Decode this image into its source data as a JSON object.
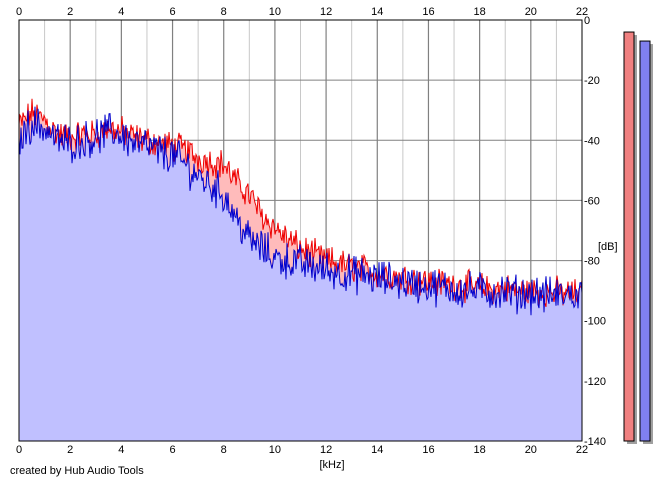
{
  "chart_data": {
    "type": "area",
    "xlabel": "[kHz]",
    "ylabel": "[dB]",
    "xlim": [
      0,
      22
    ],
    "ylim": [
      -140,
      0
    ],
    "x_ticks": [
      "0",
      "2",
      "4",
      "6",
      "8",
      "10",
      "12",
      "14",
      "16",
      "18",
      "20",
      "22"
    ],
    "y_ticks": [
      "0",
      "-20",
      "-40",
      "-60",
      "-80",
      "-100",
      "-120",
      "-140"
    ],
    "grid": true,
    "x_tick_positions": "top-and-bottom",
    "y_tick_positions": "right",
    "credit": "created by Hub Audio Tools",
    "colors": {
      "channel_1_line": "#ee0000",
      "channel_1_fill": "#ffbbbb",
      "channel_2_line": "#0000cc",
      "channel_2_fill": "#c0c0ff",
      "grid_major": "#808080",
      "grid_minor": "#c8c8c8",
      "meter_1": "#f08080",
      "meter_2": "#8080f0"
    },
    "series": [
      {
        "x": [
          0,
          0.5,
          1,
          1.5,
          2,
          2.5,
          3,
          3.5,
          4,
          4.5,
          5,
          5.5,
          6,
          6.5,
          7,
          7.5,
          8,
          8.5,
          9,
          9.5,
          10,
          10.5,
          11,
          11.5,
          12,
          12.5,
          13,
          13.5,
          14,
          14.5,
          15,
          15.5,
          16,
          16.5,
          17,
          17.5,
          18,
          18.5,
          19,
          19.5,
          20,
          20.5,
          21,
          21.5,
          22
        ],
        "values": [
          -35,
          -31,
          -33,
          -38,
          -39,
          -38,
          -38,
          -36,
          -37,
          -39,
          -40,
          -41,
          -42,
          -43,
          -46,
          -47,
          -48,
          -54,
          -58,
          -65,
          -69,
          -73,
          -76,
          -78,
          -80,
          -81,
          -82,
          -83,
          -84,
          -85,
          -85.5,
          -86,
          -87,
          -87.5,
          -88,
          -88.5,
          -89,
          -89.5,
          -89.5,
          -90,
          -90,
          -90.5,
          -90.5,
          -91,
          -91
        ]
      },
      {
        "x": [
          0,
          0.5,
          1,
          1.5,
          2,
          2.5,
          3,
          3.5,
          4,
          4.5,
          5,
          5.5,
          6,
          6.5,
          7,
          7.5,
          8,
          8.5,
          9,
          9.5,
          10,
          10.5,
          11,
          11.5,
          12,
          12.5,
          13,
          13.5,
          14,
          14.5,
          15,
          15.5,
          16,
          16.5,
          17,
          17.5,
          18,
          18.5,
          19,
          19.5,
          20,
          20.5,
          21,
          21.5,
          22
        ],
        "values": [
          -40,
          -34,
          -36,
          -40,
          -41,
          -40,
          -39,
          -37,
          -38,
          -41,
          -42,
          -44,
          -45,
          -48,
          -52,
          -55,
          -58,
          -66,
          -73,
          -76,
          -79,
          -80,
          -81,
          -82,
          -83,
          -84,
          -84.5,
          -85,
          -86,
          -86.5,
          -87,
          -88,
          -88.5,
          -89,
          -89.5,
          -90,
          -90,
          -90.5,
          -90.5,
          -91,
          -91,
          -91.5,
          -91.5,
          -91.5,
          -91.5
        ]
      }
    ],
    "meters": [
      {
        "level_top_db": -4,
        "level_bottom_db": -140
      },
      {
        "level_top_db": -7,
        "level_bottom_db": -140
      }
    ]
  }
}
